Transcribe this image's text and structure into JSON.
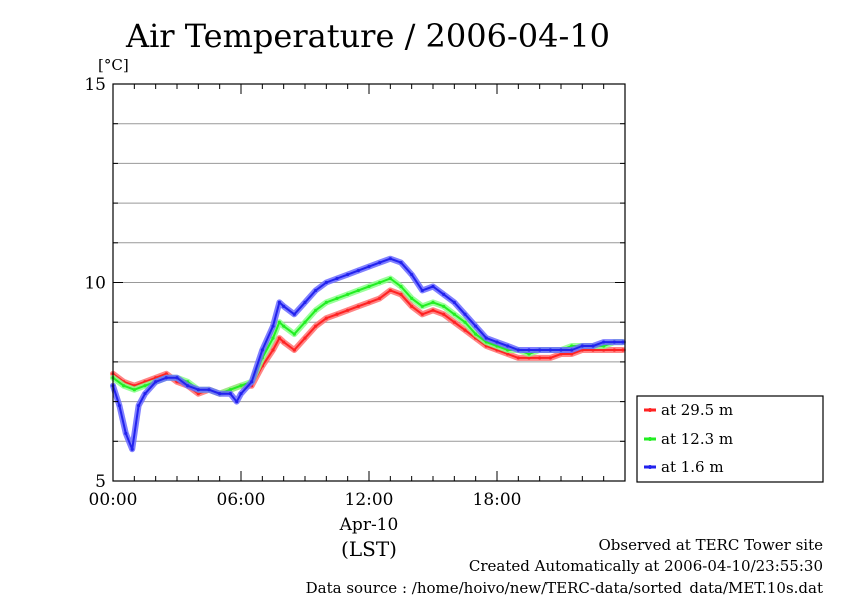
{
  "chart_data": {
    "type": "line",
    "title": "Air Temperature / 2006-04-10",
    "yunit": "[°C]",
    "ylim": [
      5,
      15
    ],
    "yticks": [
      "5",
      "10",
      "15"
    ],
    "xlim": [
      0,
      24
    ],
    "xticks": [
      {
        "value": 0,
        "label": "00:00"
      },
      {
        "value": 6,
        "label": "06:00"
      },
      {
        "value": 12,
        "label": "12:00"
      },
      {
        "value": 18,
        "label": "18:00"
      }
    ],
    "xdate": "Apr-10",
    "xunit": "(LST)",
    "grid": true,
    "legend_position": "right",
    "series": [
      {
        "name": "at 29.5 m",
        "color": "#ff2222",
        "x": [
          0,
          0.5,
          1,
          1.5,
          2,
          2.5,
          3,
          3.5,
          4,
          4.5,
          5,
          5.5,
          6,
          6.5,
          7,
          7.5,
          7.8,
          8,
          8.5,
          9,
          9.5,
          10,
          10.5,
          11,
          11.5,
          12,
          12.5,
          13,
          13.5,
          14,
          14.5,
          15,
          15.5,
          16,
          16.5,
          17,
          17.5,
          18,
          18.5,
          19,
          19.5,
          20,
          20.5,
          21,
          21.5,
          22,
          22.5,
          23,
          23.5,
          23.9
        ],
        "y": [
          7.7,
          7.5,
          7.4,
          7.5,
          7.6,
          7.7,
          7.5,
          7.4,
          7.2,
          7.3,
          7.2,
          7.3,
          7.4,
          7.4,
          7.9,
          8.3,
          8.6,
          8.5,
          8.3,
          8.6,
          8.9,
          9.1,
          9.2,
          9.3,
          9.4,
          9.5,
          9.6,
          9.8,
          9.7,
          9.4,
          9.2,
          9.3,
          9.2,
          9.0,
          8.8,
          8.6,
          8.4,
          8.3,
          8.2,
          8.1,
          8.1,
          8.1,
          8.1,
          8.2,
          8.2,
          8.3,
          8.3,
          8.3,
          8.3,
          8.3
        ]
      },
      {
        "name": "at 12.3 m",
        "color": "#22ee22",
        "x": [
          0,
          0.5,
          1,
          1.5,
          2,
          2.5,
          3,
          3.5,
          4,
          4.5,
          5,
          5.5,
          6,
          6.5,
          7,
          7.5,
          7.8,
          8,
          8.5,
          9,
          9.5,
          10,
          10.5,
          11,
          11.5,
          12,
          12.5,
          13,
          13.5,
          14,
          14.5,
          15,
          15.5,
          16,
          16.5,
          17,
          17.5,
          18,
          18.5,
          19,
          19.5,
          20,
          20.5,
          21,
          21.5,
          22,
          22.5,
          23,
          23.5,
          23.9
        ],
        "y": [
          7.6,
          7.4,
          7.3,
          7.4,
          7.5,
          7.6,
          7.6,
          7.5,
          7.3,
          7.3,
          7.2,
          7.3,
          7.4,
          7.5,
          8.1,
          8.6,
          9.0,
          8.9,
          8.7,
          9.0,
          9.3,
          9.5,
          9.6,
          9.7,
          9.8,
          9.9,
          10.0,
          10.1,
          9.9,
          9.6,
          9.4,
          9.5,
          9.4,
          9.2,
          9.0,
          8.7,
          8.5,
          8.4,
          8.3,
          8.3,
          8.2,
          8.3,
          8.3,
          8.3,
          8.4,
          8.4,
          8.4,
          8.4,
          8.5,
          8.5
        ]
      },
      {
        "name": "at 1.6 m",
        "color": "#2222ee",
        "x": [
          0,
          0.3,
          0.6,
          0.9,
          1.2,
          1.5,
          2,
          2.5,
          3,
          3.5,
          4,
          4.5,
          5,
          5.5,
          5.8,
          6,
          6.5,
          7,
          7.5,
          7.8,
          8,
          8.5,
          9,
          9.5,
          10,
          10.5,
          11,
          11.5,
          12,
          12.5,
          13,
          13.5,
          14,
          14.5,
          15,
          15.5,
          16,
          16.5,
          17,
          17.5,
          18,
          18.5,
          19,
          19.5,
          20,
          20.5,
          21,
          21.5,
          22,
          22.5,
          23,
          23.5,
          23.9
        ],
        "y": [
          7.4,
          6.9,
          6.2,
          5.8,
          6.9,
          7.2,
          7.5,
          7.6,
          7.6,
          7.4,
          7.3,
          7.3,
          7.2,
          7.2,
          7.0,
          7.2,
          7.5,
          8.3,
          8.9,
          9.5,
          9.4,
          9.2,
          9.5,
          9.8,
          10.0,
          10.1,
          10.2,
          10.3,
          10.4,
          10.5,
          10.6,
          10.5,
          10.2,
          9.8,
          9.9,
          9.7,
          9.5,
          9.2,
          8.9,
          8.6,
          8.5,
          8.4,
          8.3,
          8.3,
          8.3,
          8.3,
          8.3,
          8.3,
          8.4,
          8.4,
          8.5,
          8.5,
          8.5
        ]
      }
    ]
  },
  "footer": {
    "line1": "Observed at TERC Tower site",
    "line2": "Created Automatically at 2006-04-10/23:55:30",
    "line3": "Data source : /home/hoivo/new/TERC-data/sorted_data/MET.10s.dat"
  }
}
